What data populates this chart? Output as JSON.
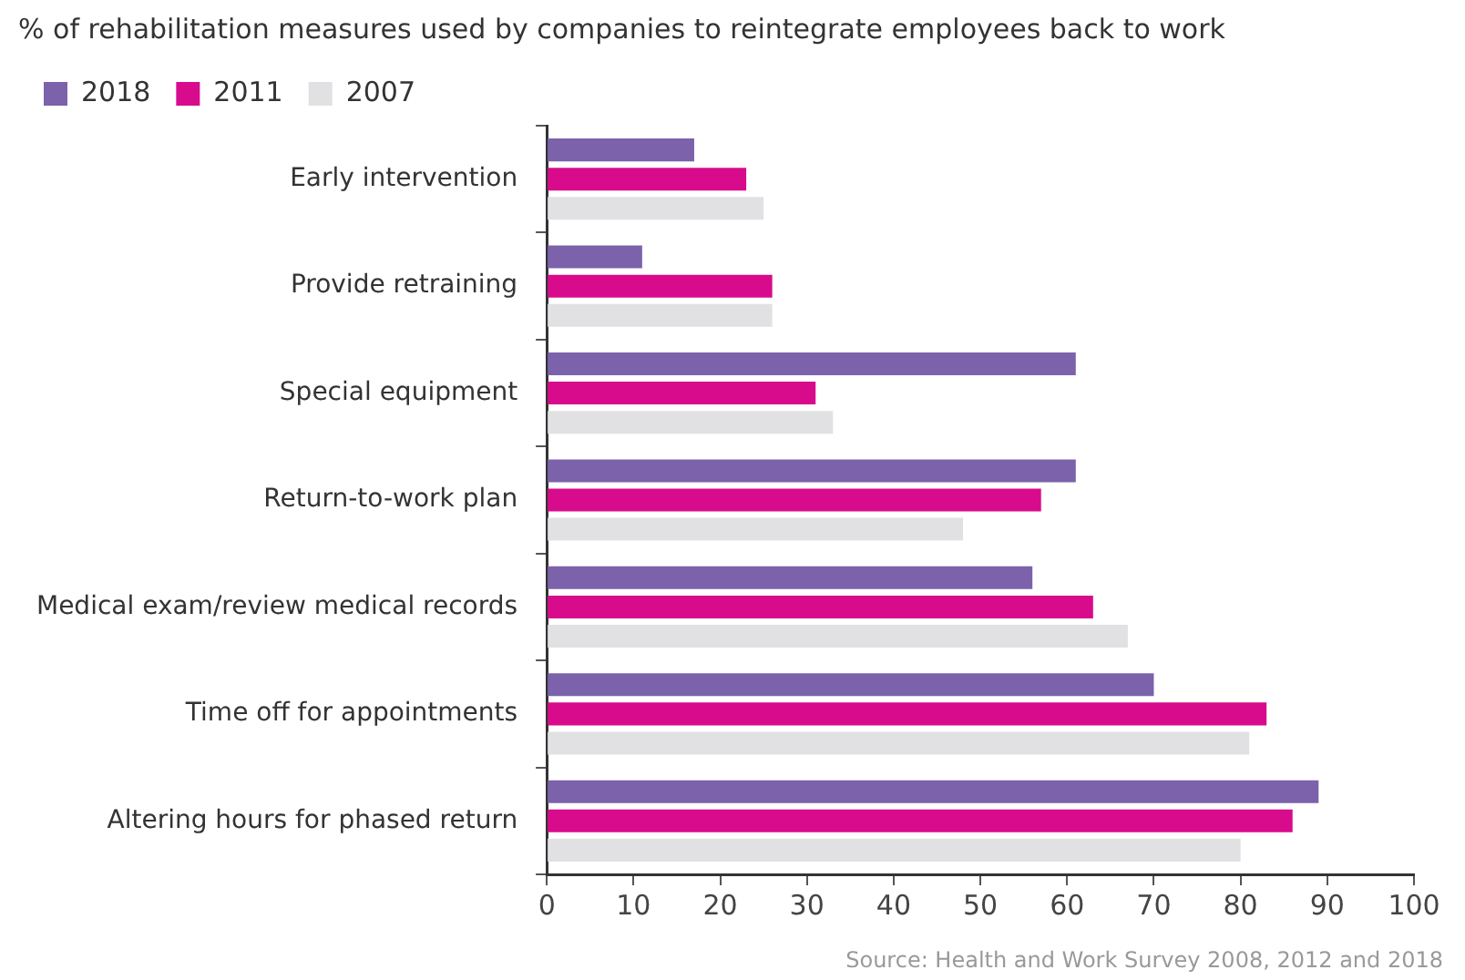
{
  "chart_data": {
    "type": "bar",
    "orientation": "horizontal",
    "title": "% of rehabilitation measures used by companies to reintegrate employees back to work",
    "categories": [
      "Early intervention",
      "Provide retraining",
      "Special equipment",
      "Return-to-work plan",
      "Medical exam/review medical records",
      "Time off for appointments",
      "Altering hours for phased return"
    ],
    "series": [
      {
        "name": "2018",
        "color": "#7b62ab",
        "values": [
          17,
          11,
          61,
          61,
          56,
          70,
          89
        ]
      },
      {
        "name": "2011",
        "color": "#d80b8c",
        "values": [
          23,
          26,
          31,
          57,
          63,
          83,
          86
        ]
      },
      {
        "name": "2007",
        "color": "#e1e1e3",
        "values": [
          25,
          26,
          33,
          48,
          67,
          81,
          80
        ]
      }
    ],
    "xlim": [
      0,
      100
    ],
    "xticks": [
      0,
      10,
      20,
      30,
      40,
      50,
      60,
      70,
      80,
      90,
      100
    ],
    "grid": false,
    "legend": "top left",
    "annotations": [
      "Source: Health and Work Survey 2008, 2012 and 2018"
    ]
  }
}
